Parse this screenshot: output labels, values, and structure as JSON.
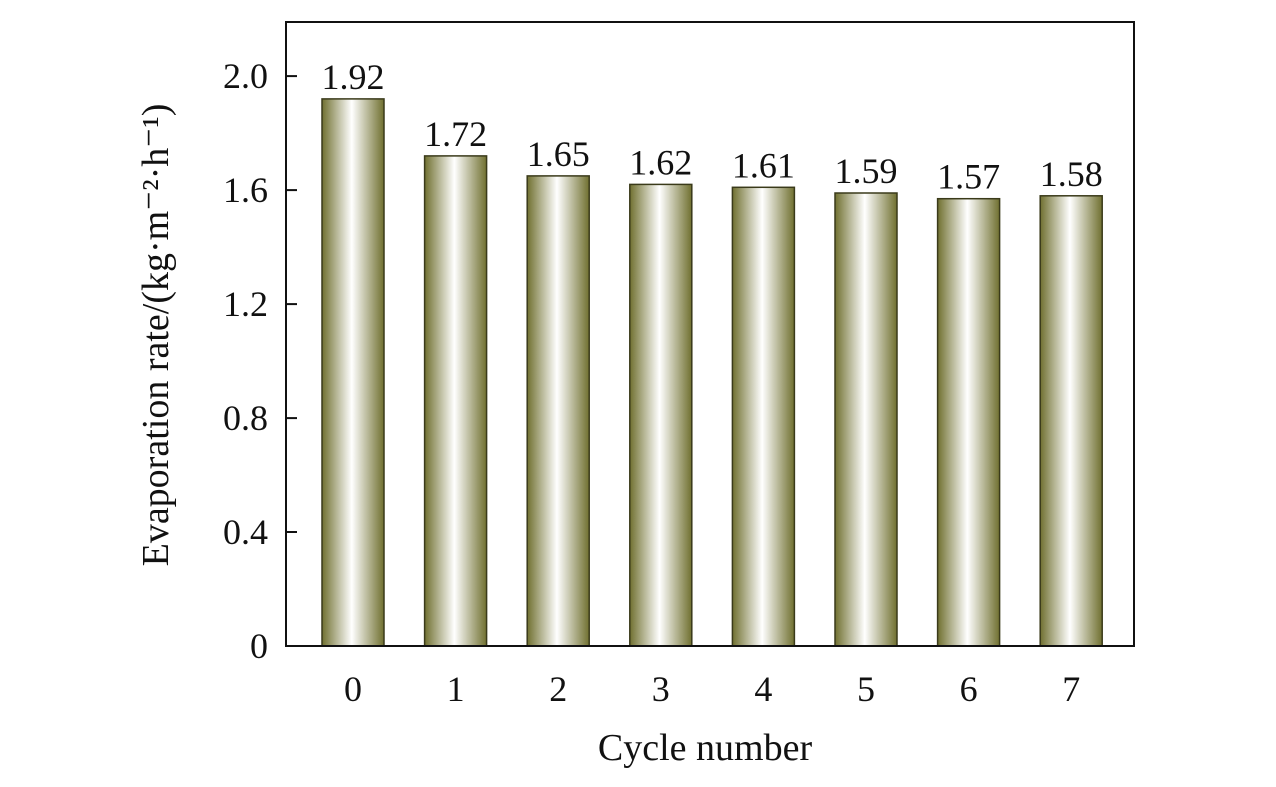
{
  "chart_data": {
    "type": "bar",
    "title": "",
    "xlabel": "Cycle number",
    "ylabel": "Evaporation rate/(kg·m⁻²·h⁻¹)",
    "categories": [
      "0",
      "1",
      "2",
      "3",
      "4",
      "5",
      "6",
      "7"
    ],
    "values": [
      1.92,
      1.72,
      1.65,
      1.62,
      1.61,
      1.59,
      1.57,
      1.58
    ],
    "data_labels": [
      "1.92",
      "1.72",
      "1.65",
      "1.62",
      "1.61",
      "1.59",
      "1.57",
      "1.58"
    ],
    "y_ticks": [
      0,
      0.4,
      0.8,
      1.2,
      1.6,
      2.0
    ],
    "y_tick_labels": [
      "0",
      "0.4",
      "0.8",
      "1.2",
      "1.6",
      "2.0"
    ],
    "ylim": [
      0,
      2.19
    ],
    "grid": false,
    "bar_colors": {
      "edge": "#707030",
      "center": "#ffffff",
      "outline": "#3a3a1a"
    }
  }
}
